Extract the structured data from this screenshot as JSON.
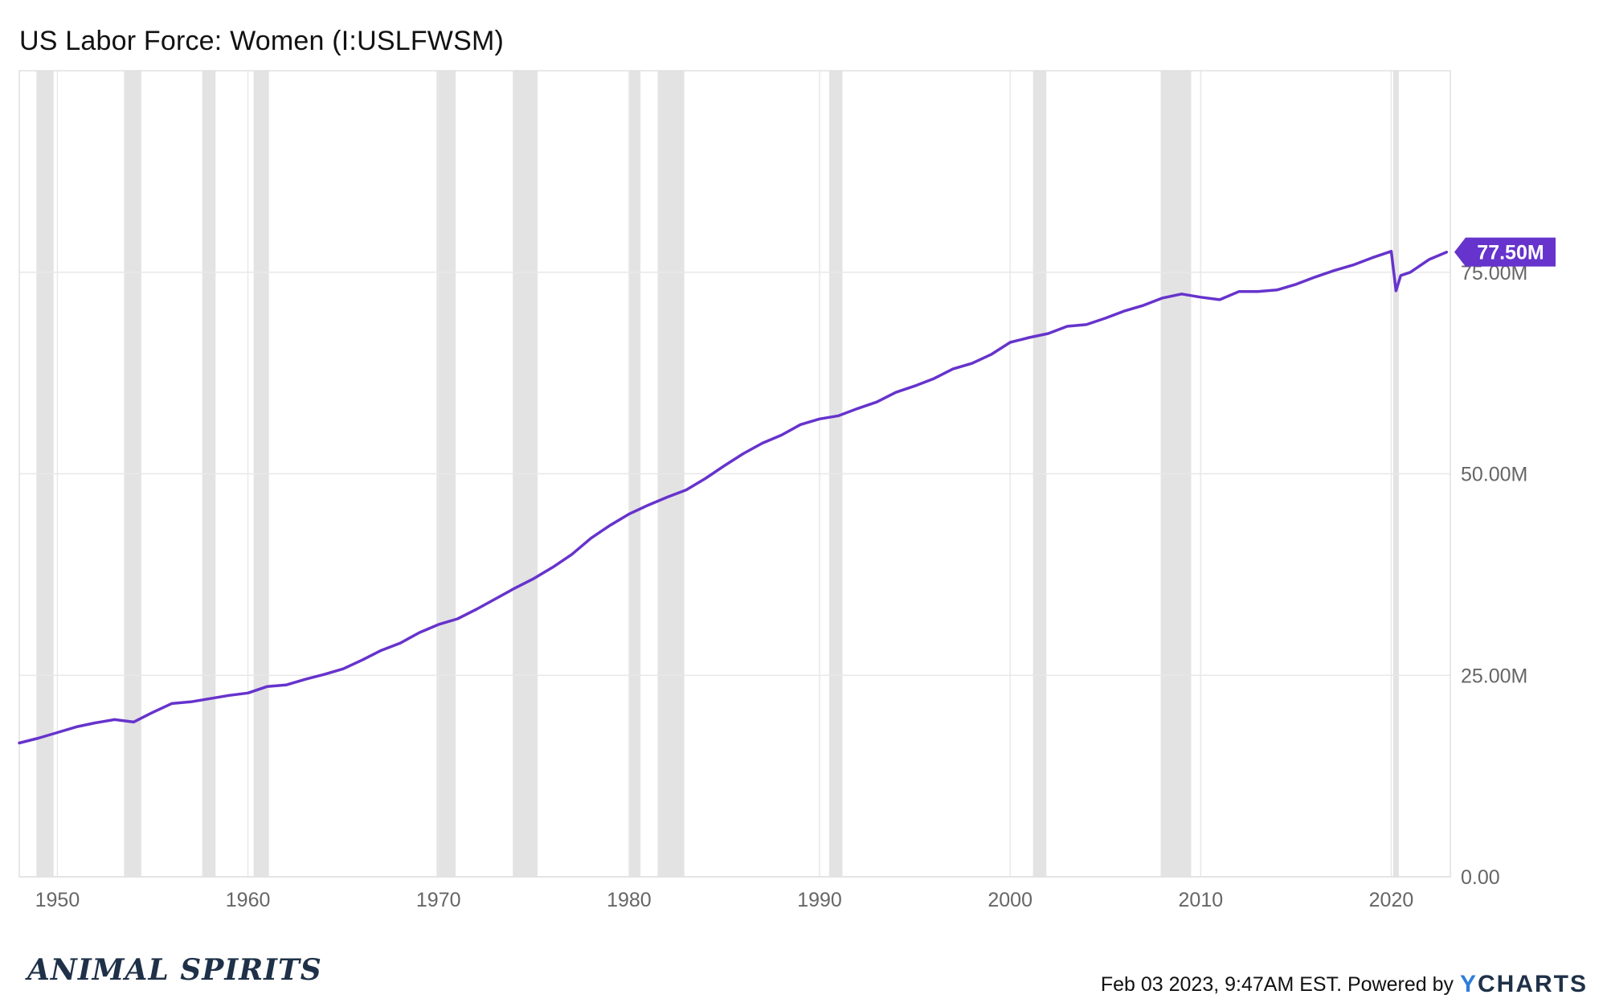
{
  "chart_data": {
    "type": "line",
    "title": "US Labor Force: Women (I:USLFWSM)",
    "xlabel": "",
    "ylabel": "",
    "xlim": [
      1948.0,
      2023.1
    ],
    "ylim": [
      0,
      100
    ],
    "x_ticks": [
      1950,
      1960,
      1970,
      1980,
      1990,
      2000,
      2010,
      2020
    ],
    "x_tick_labels": [
      "1950",
      "1960",
      "1970",
      "1980",
      "1990",
      "2000",
      "2010",
      "2020"
    ],
    "y_ticks": [
      0,
      25,
      50,
      75
    ],
    "y_tick_labels": [
      "0.00",
      "25.00M",
      "50.00M",
      "75.00M"
    ],
    "grid": true,
    "series": [
      {
        "color": "#6633cc",
        "unit": "millions",
        "last_value_label": "77.50M",
        "points": [
          [
            1948.0,
            16.6
          ],
          [
            1949.0,
            17.2
          ],
          [
            1950.0,
            17.9
          ],
          [
            1951.0,
            18.6
          ],
          [
            1952.0,
            19.1
          ],
          [
            1953.0,
            19.5
          ],
          [
            1954.0,
            19.2
          ],
          [
            1955.0,
            20.4
          ],
          [
            1956.0,
            21.5
          ],
          [
            1957.0,
            21.7
          ],
          [
            1958.0,
            22.1
          ],
          [
            1959.0,
            22.5
          ],
          [
            1960.0,
            22.8
          ],
          [
            1961.0,
            23.6
          ],
          [
            1962.0,
            23.8
          ],
          [
            1963.0,
            24.5
          ],
          [
            1964.0,
            25.1
          ],
          [
            1965.0,
            25.8
          ],
          [
            1966.0,
            26.9
          ],
          [
            1967.0,
            28.1
          ],
          [
            1968.0,
            29.0
          ],
          [
            1969.0,
            30.3
          ],
          [
            1970.0,
            31.3
          ],
          [
            1971.0,
            32.0
          ],
          [
            1972.0,
            33.2
          ],
          [
            1973.0,
            34.5
          ],
          [
            1974.0,
            35.8
          ],
          [
            1975.0,
            37.0
          ],
          [
            1976.0,
            38.4
          ],
          [
            1977.0,
            40.0
          ],
          [
            1978.0,
            42.0
          ],
          [
            1979.0,
            43.6
          ],
          [
            1980.0,
            45.0
          ],
          [
            1981.0,
            46.1
          ],
          [
            1982.0,
            47.1
          ],
          [
            1983.0,
            48.0
          ],
          [
            1984.0,
            49.4
          ],
          [
            1985.0,
            51.0
          ],
          [
            1986.0,
            52.5
          ],
          [
            1987.0,
            53.8
          ],
          [
            1988.0,
            54.8
          ],
          [
            1989.0,
            56.1
          ],
          [
            1990.0,
            56.8
          ],
          [
            1991.0,
            57.2
          ],
          [
            1992.0,
            58.1
          ],
          [
            1993.0,
            58.9
          ],
          [
            1994.0,
            60.1
          ],
          [
            1995.0,
            60.9
          ],
          [
            1996.0,
            61.8
          ],
          [
            1997.0,
            63.0
          ],
          [
            1998.0,
            63.7
          ],
          [
            1999.0,
            64.8
          ],
          [
            2000.0,
            66.3
          ],
          [
            2001.0,
            66.9
          ],
          [
            2002.0,
            67.4
          ],
          [
            2003.0,
            68.3
          ],
          [
            2004.0,
            68.5
          ],
          [
            2005.0,
            69.3
          ],
          [
            2006.0,
            70.2
          ],
          [
            2007.0,
            70.9
          ],
          [
            2008.0,
            71.8
          ],
          [
            2009.0,
            72.3
          ],
          [
            2010.0,
            71.9
          ],
          [
            2011.0,
            71.6
          ],
          [
            2012.0,
            72.6
          ],
          [
            2013.0,
            72.6
          ],
          [
            2014.0,
            72.8
          ],
          [
            2015.0,
            73.5
          ],
          [
            2016.0,
            74.4
          ],
          [
            2017.0,
            75.2
          ],
          [
            2018.0,
            75.9
          ],
          [
            2019.0,
            76.8
          ],
          [
            2020.0,
            77.6
          ],
          [
            2020.25,
            72.7
          ],
          [
            2020.5,
            74.6
          ],
          [
            2021.0,
            75.0
          ],
          [
            2021.5,
            75.8
          ],
          [
            2022.0,
            76.6
          ],
          [
            2022.5,
            77.1
          ],
          [
            2022.9,
            77.5
          ]
        ]
      }
    ],
    "recessions": [
      [
        1948.9,
        1949.8
      ],
      [
        1953.5,
        1954.4
      ],
      [
        1957.6,
        1958.3
      ],
      [
        1960.3,
        1961.1
      ],
      [
        1969.9,
        1970.9
      ],
      [
        1973.9,
        1975.2
      ],
      [
        1980.0,
        1980.6
      ],
      [
        1981.5,
        1982.9
      ],
      [
        1990.5,
        1991.2
      ],
      [
        2001.2,
        2001.9
      ],
      [
        2007.9,
        2009.5
      ],
      [
        2020.1,
        2020.4
      ]
    ]
  },
  "colors": {
    "line": "#6633cc",
    "recession_band": "#e3e3e3",
    "grid": "#e8e8e8",
    "badge_bg": "#6633cc",
    "badge_text": "#ffffff"
  },
  "footer": {
    "logo_text": "ANIMAL SPIRITS",
    "credit_text": "Feb 03 2023, 9:47AM EST. Powered by",
    "brand_y": "Y",
    "brand_rest": "CHARTS"
  }
}
